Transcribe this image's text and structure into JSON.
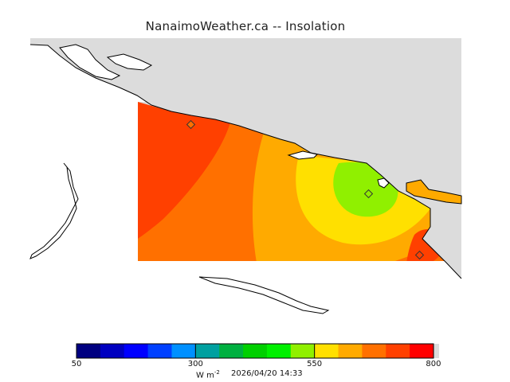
{
  "title": "NanaimoWeather.ca -- Insolation",
  "colorbar": {
    "colors": [
      "#000080",
      "#0000c0",
      "#0000ff",
      "#0040ff",
      "#0090ff",
      "#00a0a0",
      "#00b040",
      "#00d000",
      "#00f000",
      "#90f000",
      "#ffe000",
      "#ffaa00",
      "#ff7000",
      "#ff4000",
      "#ff0000"
    ],
    "ticks": [
      {
        "label": "50",
        "value": 50
      },
      {
        "label": "300",
        "value": 300
      },
      {
        "label": "550",
        "value": 550
      },
      {
        "label": "800",
        "value": 800
      }
    ],
    "min": 50,
    "max": 800
  },
  "units": {
    "base": "W m",
    "exp": "-2"
  },
  "timestamp": "2026/04/20 14:33",
  "field_colors": {
    "red_orange": "#ff4000",
    "orange": "#ff7000",
    "light_orange": "#ffaa00",
    "yellow": "#ffe000",
    "yellow_green": "#90f000",
    "land_grey": "#dcdcdc"
  }
}
